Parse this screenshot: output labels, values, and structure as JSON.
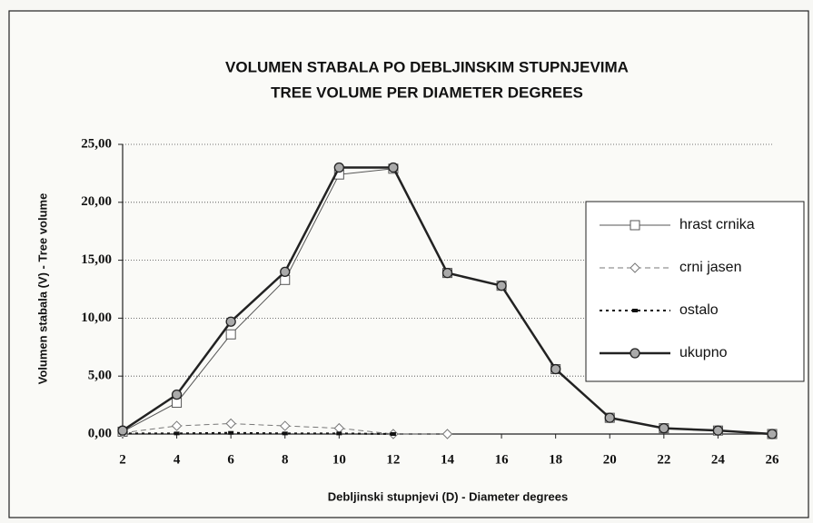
{
  "chart_data": {
    "type": "line",
    "title": "VOLUMEN STABALA PO DEBLJINSKIM STUPNJEVIMA",
    "subtitle": "TREE VOLUME PER DIAMETER DEGREES",
    "x_label": "Debljinski stupnjevi (D) - Diameter degrees",
    "y_label": "Volumen stabala (V) - Tree volume",
    "x": [
      2,
      4,
      6,
      8,
      10,
      12,
      14,
      16,
      18,
      20,
      22,
      24,
      26
    ],
    "xlim": [
      2,
      26
    ],
    "xticks": [
      2,
      4,
      6,
      8,
      10,
      12,
      14,
      16,
      18,
      20,
      22,
      24,
      26
    ],
    "ylim": [
      0,
      25
    ],
    "yticks": [
      {
        "value": 0,
        "label": "0,00"
      },
      {
        "value": 5,
        "label": "5,00"
      },
      {
        "value": 10,
        "label": "10,00"
      },
      {
        "value": 15,
        "label": "15,00"
      },
      {
        "value": 20,
        "label": "20,00"
      },
      {
        "value": 25,
        "label": "25,00"
      }
    ],
    "grid": true,
    "legend": "right",
    "series": [
      {
        "name": "hrast crnika",
        "color": "#555555",
        "marker": "square",
        "dash": "solid",
        "values": [
          0.2,
          2.7,
          8.6,
          13.3,
          22.4,
          22.9,
          13.9,
          12.8,
          5.6,
          1.4,
          0.5,
          0.3,
          0.0
        ]
      },
      {
        "name": "crni jasen",
        "color": "#777777",
        "marker": "diamond",
        "dash": "dashed",
        "values": [
          0.1,
          0.7,
          0.9,
          0.7,
          0.5,
          0.0,
          0.0,
          null,
          null,
          null,
          null,
          null,
          null
        ]
      },
      {
        "name": "ostalo",
        "color": "#111111",
        "marker": "filled-square",
        "dash": "dotted",
        "values": [
          0.05,
          0.05,
          0.1,
          0.05,
          0.05,
          0.0,
          null,
          null,
          null,
          null,
          null,
          null,
          null
        ]
      },
      {
        "name": "ukupno",
        "color": "#222222",
        "marker": "circle",
        "dash": "bold",
        "values": [
          0.3,
          3.4,
          9.7,
          14.0,
          23.0,
          23.0,
          13.9,
          12.8,
          5.6,
          1.4,
          0.5,
          0.3,
          0.0
        ]
      }
    ]
  }
}
